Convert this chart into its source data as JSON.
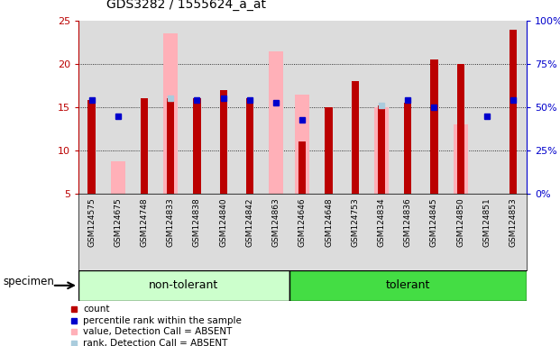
{
  "title": "GDS3282 / 1555624_a_at",
  "samples": [
    "GSM124575",
    "GSM124675",
    "GSM124748",
    "GSM124833",
    "GSM124838",
    "GSM124840",
    "GSM124842",
    "GSM124863",
    "GSM124646",
    "GSM124648",
    "GSM124753",
    "GSM124834",
    "GSM124836",
    "GSM124845",
    "GSM124850",
    "GSM124851",
    "GSM124853"
  ],
  "group_labels": [
    "non-tolerant",
    "tolerant"
  ],
  "non_tolerant_count": 8,
  "tolerant_count": 9,
  "red_values": [
    15.8,
    null,
    16.0,
    16.0,
    16.0,
    17.0,
    16.0,
    null,
    11.0,
    15.0,
    18.0,
    15.2,
    15.5,
    20.5,
    20.0,
    null,
    24.0
  ],
  "blue_values": [
    15.8,
    14.0,
    null,
    null,
    15.8,
    16.0,
    15.8,
    15.5,
    13.5,
    null,
    null,
    null,
    15.8,
    15.0,
    null,
    14.0,
    15.8
  ],
  "pink_values": [
    null,
    8.8,
    null,
    23.5,
    null,
    null,
    null,
    21.5,
    16.5,
    null,
    null,
    15.0,
    null,
    null,
    13.0,
    null,
    null
  ],
  "lightblue_values": [
    null,
    null,
    null,
    16.0,
    null,
    null,
    null,
    null,
    null,
    null,
    null,
    15.2,
    null,
    null,
    null,
    null,
    null
  ],
  "ylim": [
    5,
    25
  ],
  "yticks": [
    5,
    10,
    15,
    20,
    25
  ],
  "right_ytick_labels": [
    "0%",
    "25%",
    "50%",
    "75%",
    "100%"
  ],
  "right_ytick_vals": [
    0,
    25,
    50,
    75,
    100
  ],
  "bg_color": "#DCDCDC",
  "white_bg": "#FFFFFF",
  "red_color": "#BB0000",
  "blue_color": "#0000CC",
  "pink_color": "#FFB0B8",
  "lightblue_color": "#AACCDD",
  "nt_color": "#CCFFCC",
  "t_color": "#44DD44",
  "legend_items": [
    {
      "label": "count",
      "color": "#BB0000"
    },
    {
      "label": "percentile rank within the sample",
      "color": "#0000CC"
    },
    {
      "label": "value, Detection Call = ABSENT",
      "color": "#FFB0B8"
    },
    {
      "label": "rank, Detection Call = ABSENT",
      "color": "#AACCDD"
    }
  ]
}
